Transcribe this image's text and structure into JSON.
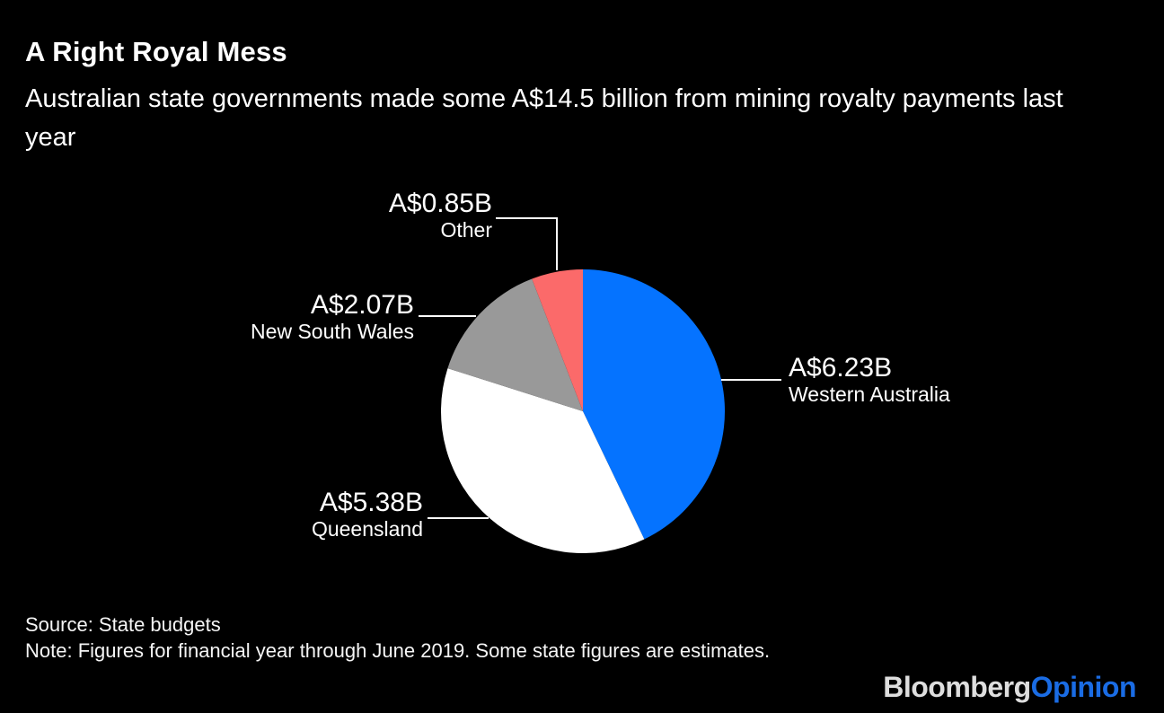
{
  "header": {
    "title": "A Right Royal Mess",
    "subtitle": "Australian state governments made some A$14.5 billion from mining royalty payments last year"
  },
  "chart_data": {
    "type": "pie",
    "title": "A Right Royal Mess",
    "subtitle": "Australian state governments made some A$14.5 billion from mining royalty payments last year",
    "unit": "A$ billions",
    "total": 14.53,
    "total_label": "A$14.5 billion",
    "direction": "clockwise",
    "start_angle_deg": 0,
    "legend_position": "none",
    "background_color": "#000000",
    "slices": [
      {
        "name": "Western Australia",
        "value": 6.23,
        "label": "A$6.23B",
        "color": "#0573ff"
      },
      {
        "name": "Queensland",
        "value": 5.38,
        "label": "A$5.38B",
        "color": "#ffffff"
      },
      {
        "name": "New South Wales",
        "value": 2.07,
        "label": "A$2.07B",
        "color": "#999999"
      },
      {
        "name": "Other",
        "value": 0.85,
        "label": "A$0.85B",
        "color": "#fb6a6a"
      }
    ]
  },
  "footer": {
    "source": "Source: State budgets",
    "note": "Note: Figures for financial year through June 2019. Some state figures are estimates."
  },
  "brand": {
    "part1": "Bloomberg",
    "part2": "Opinion",
    "part2_color": "#1a6ce4"
  }
}
